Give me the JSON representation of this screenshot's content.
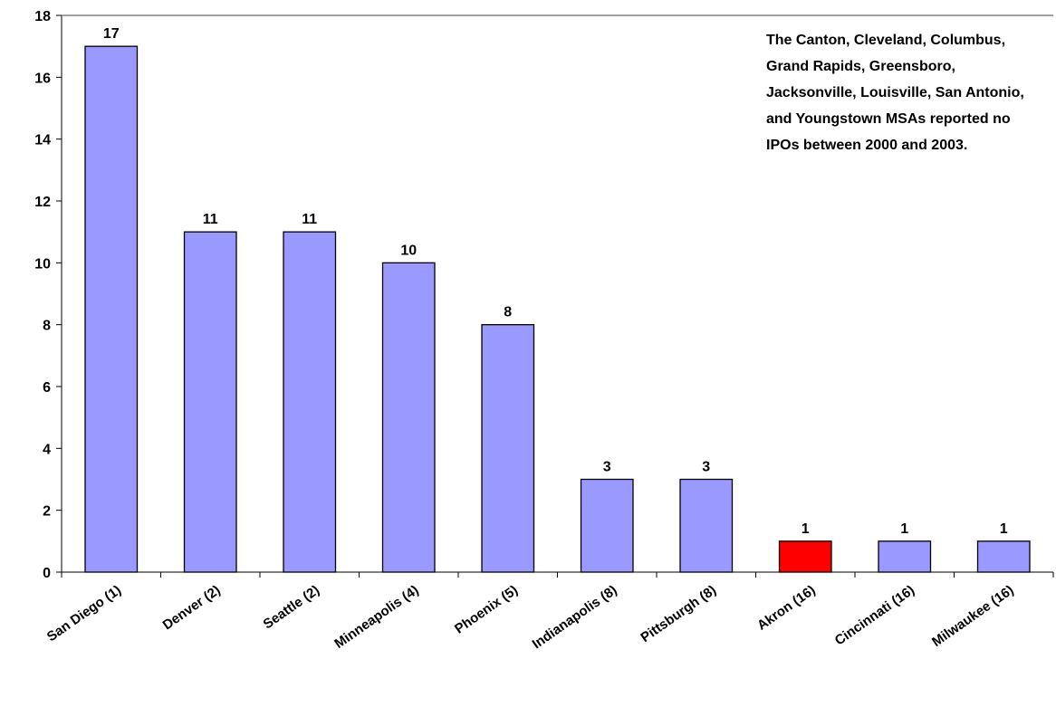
{
  "chart_data": {
    "type": "bar",
    "categories": [
      "San Diego (1)",
      "Denver (2)",
      "Seattle (2)",
      "Minneapolis (4)",
      "Phoenix (5)",
      "Indianapolis (8)",
      "Pittsburgh (8)",
      "Akron (16)",
      "Cincinnati (16)",
      "Milwaukee (16)"
    ],
    "values": [
      17,
      11,
      11,
      10,
      8,
      3,
      3,
      1,
      1,
      1
    ],
    "data_labels": [
      "17",
      "11",
      "11",
      "10",
      "8",
      "3",
      "3",
      "1",
      "1",
      "1"
    ],
    "bar_colors": [
      "#9999ff",
      "#9999ff",
      "#9999ff",
      "#9999ff",
      "#9999ff",
      "#9999ff",
      "#9999ff",
      "#ff0000",
      "#9999ff",
      "#9999ff"
    ],
    "highlight_color": "#ff0000",
    "default_color": "#9999ff",
    "ylim": [
      0,
      18
    ],
    "yticks": [
      0,
      2,
      4,
      6,
      8,
      10,
      12,
      14,
      16,
      18
    ],
    "ytick_labels": [
      "0",
      "2",
      "4",
      "6",
      "8",
      "10",
      "12",
      "14",
      "16",
      "18"
    ],
    "grid": false,
    "legend": false,
    "title": "",
    "xlabel": "",
    "ylabel": "",
    "annotation": "The Canton, Cleveland, Columbus, Grand Rapids, Greensboro, Jacksonville, Louisville, San Antonio, and Youngstown MSAs reported no IPOs between 2000 and 2003."
  }
}
